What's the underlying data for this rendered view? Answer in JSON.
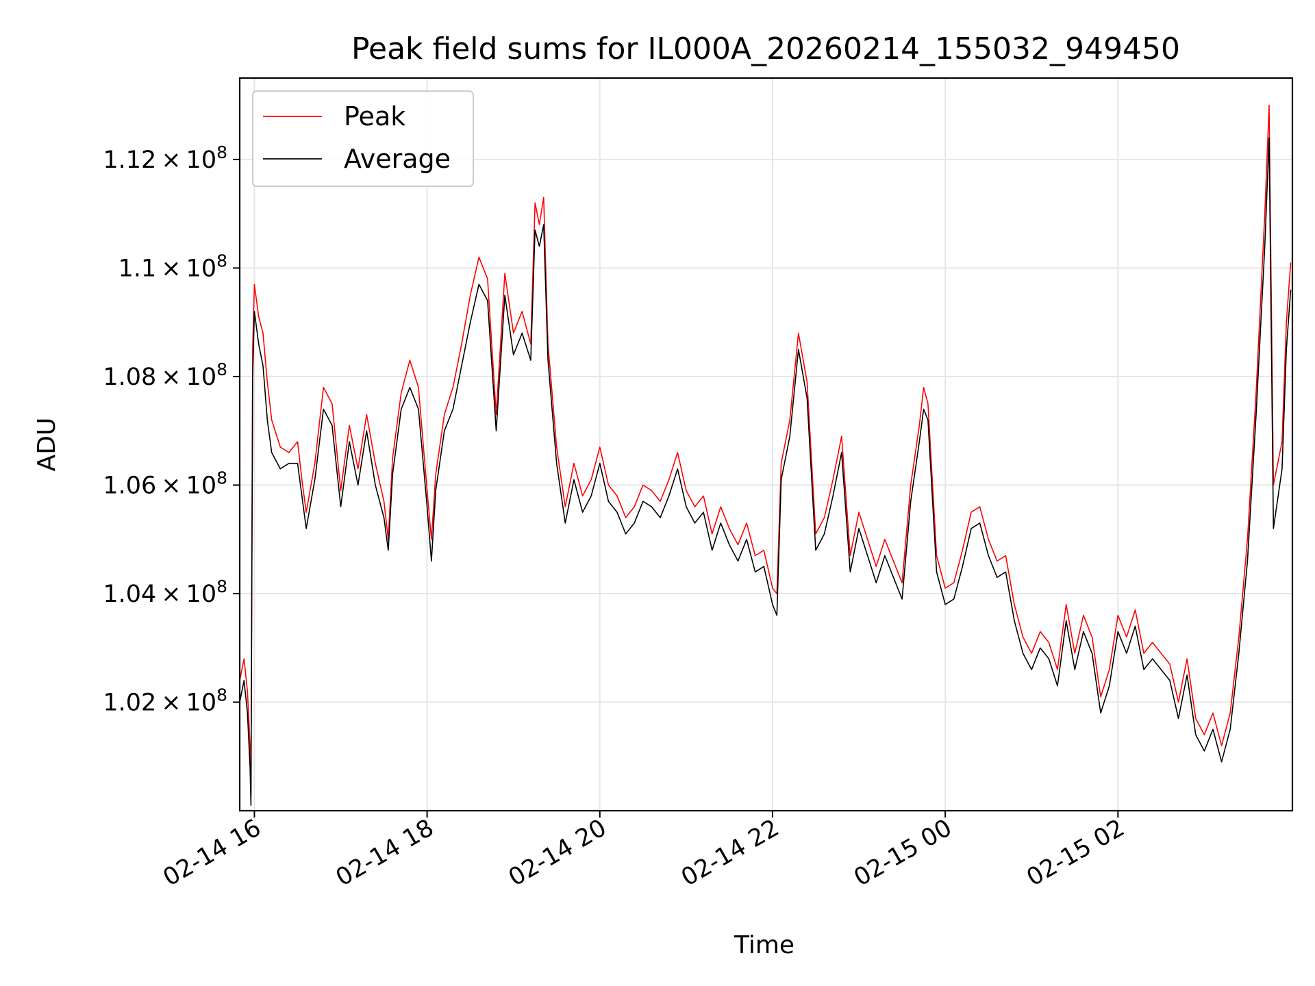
{
  "chart_data": {
    "type": "line",
    "title": "Peak field sums for IL000A_20260214_155032_949450",
    "xlabel": "Time",
    "ylabel": "ADU",
    "grid": true,
    "legend_position": "upper-left",
    "x_unit": "hours since 02-14 00:00",
    "xlim": [
      15.83,
      28.02
    ],
    "ylim": [
      1.0,
      1.135
    ],
    "y_scale_note": "values in units of 1e8 ADU",
    "x_ticks": [
      {
        "value": 16,
        "label": "02-14 16"
      },
      {
        "value": 18,
        "label": "02-14 18"
      },
      {
        "value": 20,
        "label": "02-14 20"
      },
      {
        "value": 22,
        "label": "02-14 22"
      },
      {
        "value": 24,
        "label": "02-15 00"
      },
      {
        "value": 26,
        "label": "02-15 02"
      }
    ],
    "y_ticks": [
      {
        "value": 1.02,
        "mantissa": "1.02"
      },
      {
        "value": 1.04,
        "mantissa": "1.04"
      },
      {
        "value": 1.06,
        "mantissa": "1.06"
      },
      {
        "value": 1.08,
        "mantissa": "1.08"
      },
      {
        "value": 1.1,
        "mantissa": "1.1"
      },
      {
        "value": 1.12,
        "mantissa": "1.12"
      }
    ],
    "series": [
      {
        "name": "Peak",
        "color": "#ff0000",
        "x": [
          15.83,
          15.88,
          15.92,
          15.95,
          15.96,
          15.98,
          16.0,
          16.05,
          16.1,
          16.15,
          16.2,
          16.3,
          16.4,
          16.5,
          16.55,
          16.6,
          16.7,
          16.8,
          16.9,
          17.0,
          17.1,
          17.2,
          17.3,
          17.4,
          17.5,
          17.55,
          17.6,
          17.7,
          17.8,
          17.9,
          18.0,
          18.05,
          18.1,
          18.2,
          18.3,
          18.4,
          18.5,
          18.6,
          18.7,
          18.8,
          18.9,
          19.0,
          19.1,
          19.2,
          19.25,
          19.3,
          19.35,
          19.4,
          19.5,
          19.6,
          19.7,
          19.8,
          19.9,
          20.0,
          20.1,
          20.2,
          20.3,
          20.4,
          20.5,
          20.6,
          20.7,
          20.8,
          20.9,
          21.0,
          21.1,
          21.2,
          21.3,
          21.4,
          21.5,
          21.6,
          21.7,
          21.8,
          21.9,
          22.0,
          22.05,
          22.1,
          22.2,
          22.3,
          22.4,
          22.5,
          22.6,
          22.7,
          22.8,
          22.9,
          23.0,
          23.1,
          23.2,
          23.3,
          23.4,
          23.5,
          23.6,
          23.7,
          23.75,
          23.8,
          23.9,
          24.0,
          24.1,
          24.2,
          24.3,
          24.4,
          24.5,
          24.6,
          24.7,
          24.8,
          24.9,
          25.0,
          25.1,
          25.2,
          25.3,
          25.4,
          25.5,
          25.6,
          25.7,
          25.8,
          25.9,
          26.0,
          26.1,
          26.2,
          26.3,
          26.4,
          26.5,
          26.6,
          26.7,
          26.8,
          26.9,
          27.0,
          27.1,
          27.2,
          27.3,
          27.4,
          27.5,
          27.6,
          27.7,
          27.75,
          27.8,
          27.9,
          27.95,
          28.0
        ],
        "values": [
          1.024,
          1.028,
          1.022,
          1.012,
          1.003,
          1.085,
          1.097,
          1.091,
          1.088,
          1.079,
          1.072,
          1.067,
          1.066,
          1.068,
          1.061,
          1.055,
          1.064,
          1.078,
          1.075,
          1.059,
          1.071,
          1.063,
          1.073,
          1.064,
          1.057,
          1.05,
          1.065,
          1.077,
          1.083,
          1.078,
          1.059,
          1.05,
          1.062,
          1.073,
          1.078,
          1.086,
          1.095,
          1.102,
          1.098,
          1.073,
          1.099,
          1.088,
          1.092,
          1.086,
          1.112,
          1.108,
          1.113,
          1.086,
          1.067,
          1.056,
          1.064,
          1.058,
          1.061,
          1.067,
          1.06,
          1.058,
          1.054,
          1.056,
          1.06,
          1.059,
          1.057,
          1.061,
          1.066,
          1.059,
          1.056,
          1.058,
          1.051,
          1.056,
          1.052,
          1.049,
          1.053,
          1.047,
          1.048,
          1.041,
          1.04,
          1.064,
          1.072,
          1.088,
          1.079,
          1.051,
          1.054,
          1.061,
          1.069,
          1.047,
          1.055,
          1.05,
          1.045,
          1.05,
          1.046,
          1.042,
          1.06,
          1.071,
          1.078,
          1.075,
          1.047,
          1.041,
          1.042,
          1.048,
          1.055,
          1.056,
          1.05,
          1.046,
          1.047,
          1.038,
          1.032,
          1.029,
          1.033,
          1.031,
          1.026,
          1.038,
          1.029,
          1.036,
          1.032,
          1.021,
          1.026,
          1.036,
          1.032,
          1.037,
          1.029,
          1.031,
          1.029,
          1.027,
          1.02,
          1.028,
          1.017,
          1.014,
          1.018,
          1.012,
          1.018,
          1.032,
          1.05,
          1.077,
          1.11,
          1.13,
          1.06,
          1.068,
          1.09,
          1.101
        ]
      },
      {
        "name": "Average",
        "color": "#000000",
        "x": [
          15.83,
          15.88,
          15.92,
          15.95,
          15.96,
          15.98,
          16.0,
          16.05,
          16.1,
          16.15,
          16.2,
          16.3,
          16.4,
          16.5,
          16.55,
          16.6,
          16.7,
          16.8,
          16.9,
          17.0,
          17.1,
          17.2,
          17.3,
          17.4,
          17.5,
          17.55,
          17.6,
          17.7,
          17.8,
          17.9,
          18.0,
          18.05,
          18.1,
          18.2,
          18.3,
          18.4,
          18.5,
          18.6,
          18.7,
          18.8,
          18.9,
          19.0,
          19.1,
          19.2,
          19.25,
          19.3,
          19.35,
          19.4,
          19.5,
          19.6,
          19.7,
          19.8,
          19.9,
          20.0,
          20.1,
          20.2,
          20.3,
          20.4,
          20.5,
          20.6,
          20.7,
          20.8,
          20.9,
          21.0,
          21.1,
          21.2,
          21.3,
          21.4,
          21.5,
          21.6,
          21.7,
          21.8,
          21.9,
          22.0,
          22.05,
          22.1,
          22.2,
          22.3,
          22.4,
          22.5,
          22.6,
          22.7,
          22.8,
          22.9,
          23.0,
          23.1,
          23.2,
          23.3,
          23.4,
          23.5,
          23.6,
          23.7,
          23.75,
          23.8,
          23.9,
          24.0,
          24.1,
          24.2,
          24.3,
          24.4,
          24.5,
          24.6,
          24.7,
          24.8,
          24.9,
          25.0,
          25.1,
          25.2,
          25.3,
          25.4,
          25.5,
          25.6,
          25.7,
          25.8,
          25.9,
          26.0,
          26.1,
          26.2,
          26.3,
          26.4,
          26.5,
          26.6,
          26.7,
          26.8,
          26.9,
          27.0,
          27.1,
          27.2,
          27.3,
          27.4,
          27.5,
          27.6,
          27.7,
          27.75,
          27.8,
          27.9,
          27.95,
          28.0
        ],
        "values": [
          1.02,
          1.024,
          1.018,
          1.008,
          1.001,
          1.08,
          1.092,
          1.086,
          1.082,
          1.072,
          1.066,
          1.063,
          1.064,
          1.064,
          1.058,
          1.052,
          1.061,
          1.074,
          1.071,
          1.056,
          1.068,
          1.06,
          1.07,
          1.06,
          1.054,
          1.048,
          1.062,
          1.074,
          1.078,
          1.074,
          1.056,
          1.046,
          1.059,
          1.07,
          1.074,
          1.082,
          1.09,
          1.097,
          1.094,
          1.07,
          1.095,
          1.084,
          1.088,
          1.083,
          1.107,
          1.104,
          1.108,
          1.083,
          1.064,
          1.053,
          1.061,
          1.055,
          1.058,
          1.064,
          1.057,
          1.055,
          1.051,
          1.053,
          1.057,
          1.056,
          1.054,
          1.058,
          1.063,
          1.056,
          1.053,
          1.055,
          1.048,
          1.053,
          1.049,
          1.046,
          1.05,
          1.044,
          1.045,
          1.038,
          1.036,
          1.061,
          1.069,
          1.085,
          1.076,
          1.048,
          1.051,
          1.058,
          1.066,
          1.044,
          1.052,
          1.047,
          1.042,
          1.047,
          1.043,
          1.039,
          1.057,
          1.068,
          1.074,
          1.072,
          1.044,
          1.038,
          1.039,
          1.045,
          1.052,
          1.053,
          1.047,
          1.043,
          1.044,
          1.035,
          1.029,
          1.026,
          1.03,
          1.028,
          1.023,
          1.035,
          1.026,
          1.033,
          1.029,
          1.018,
          1.023,
          1.033,
          1.029,
          1.034,
          1.026,
          1.028,
          1.026,
          1.024,
          1.017,
          1.025,
          1.014,
          1.011,
          1.015,
          1.009,
          1.015,
          1.029,
          1.046,
          1.073,
          1.104,
          1.124,
          1.052,
          1.063,
          1.085,
          1.096
        ]
      }
    ]
  }
}
